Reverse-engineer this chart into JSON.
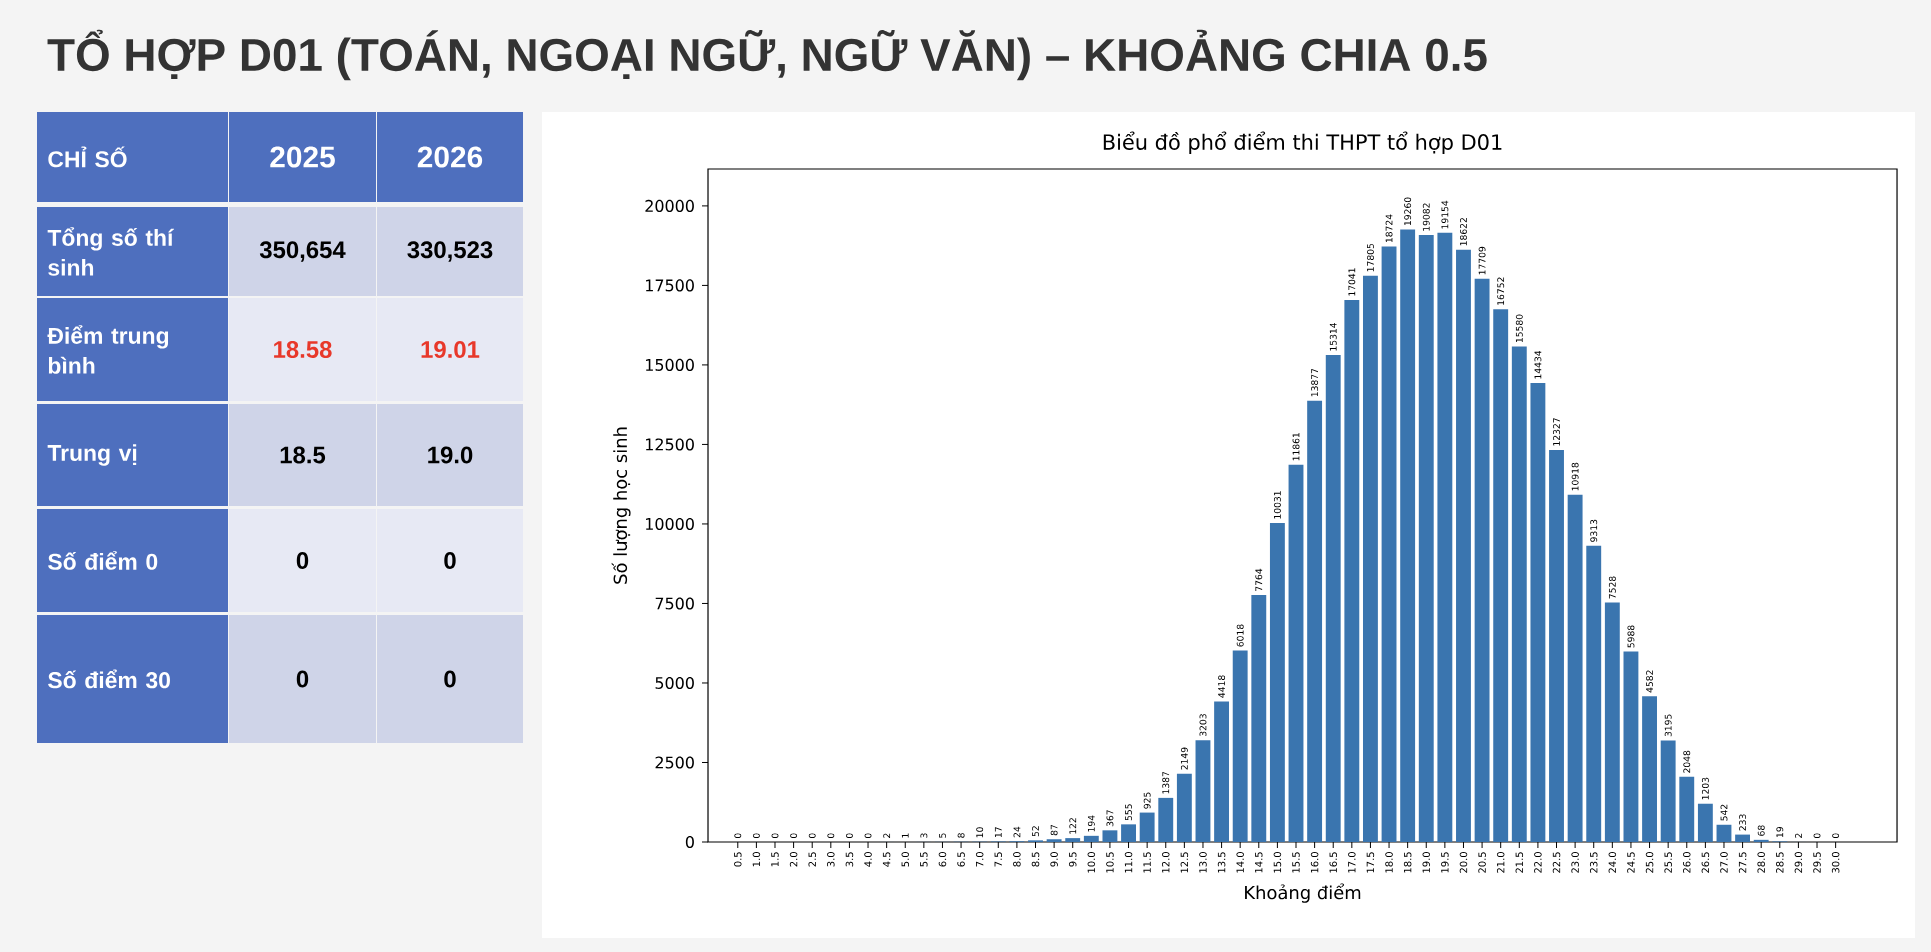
{
  "chart_data": [
    {
      "type": "other",
      "title": "TỔ HỢP D01 (TOÁN, NGOẠI NGỮ, NGỮ VĂN) – KHOẢNG CHIA 0.5",
      "annotations": [
        "CHỈ SỐ",
        "2025",
        "2026",
        "Tổng số thí sinh",
        "350,654",
        "330,523",
        "Điểm trung bình",
        "18.58",
        "19.01",
        "Trung vị",
        "18.5",
        "19.0",
        "Số điểm 0",
        "0",
        "0",
        "Số điểm 30",
        "0",
        "0"
      ]
    },
    {
      "type": "bar",
      "title": "Biểu đồ phổ điểm thi THPT tổ hợp D01",
      "xlabel": "Khoảng điểm",
      "ylabel": "Số lượng học sinh",
      "categories": [
        "0.5",
        "1.0",
        "1.5",
        "2.0",
        "2.5",
        "3.0",
        "3.5",
        "4.0",
        "4.5",
        "5.0",
        "5.5",
        "6.0",
        "6.5",
        "7.0",
        "7.5",
        "8.0",
        "8.5",
        "9.0",
        "9.5",
        "10.0",
        "10.5",
        "11.0",
        "11.5",
        "12.0",
        "12.5",
        "13.0",
        "13.5",
        "14.0",
        "14.5",
        "15.0",
        "15.5",
        "16.0",
        "16.5",
        "17.0",
        "17.5",
        "18.0",
        "18.5",
        "19.0",
        "19.5",
        "20.0",
        "20.5",
        "21.0",
        "21.5",
        "22.0",
        "22.5",
        "23.0",
        "23.5",
        "24.0",
        "24.5",
        "25.0",
        "25.5",
        "26.0",
        "26.5",
        "27.0",
        "27.5",
        "28.0",
        "28.5",
        "29.0",
        "29.5",
        "30.0"
      ],
      "values": [
        0,
        0,
        0,
        0,
        0,
        0,
        0,
        0,
        2,
        1,
        3,
        5,
        8,
        10,
        17,
        24,
        52,
        87,
        122,
        194,
        367,
        555,
        925,
        1387,
        2149,
        3203,
        4418,
        6018,
        7764,
        10031,
        11861,
        13877,
        15314,
        17041,
        17805,
        18724,
        19260,
        19082,
        19154,
        18622,
        17709,
        16752,
        15580,
        14434,
        12327,
        10918,
        9313,
        7528,
        5988,
        4582,
        3195,
        2048,
        1203,
        542,
        233,
        68,
        19,
        2,
        0,
        0
      ],
      "color": "#3a75af",
      "data_labels": true,
      "ylim": [
        0,
        21160
      ],
      "yticks": [
        0,
        2500,
        5000,
        7500,
        10000,
        12500,
        15000,
        17500,
        20000
      ]
    }
  ]
}
